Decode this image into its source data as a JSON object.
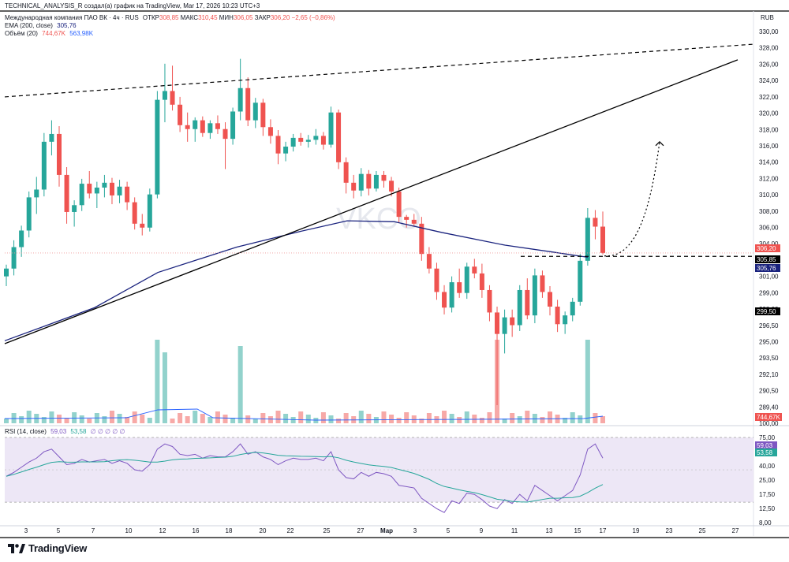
{
  "header": {
    "top_line": "TECHNICAL_ANALYSIS_R создал(а) график на TradingView, Mar 17, 2026 10:23 UTC+3",
    "symbol": "Международная компания ПАО ВК · 4ч · RUS",
    "o_label": "ОТКР",
    "o": "308,85",
    "h_label": "МАКС",
    "h": "310,45",
    "l_label": "МИН",
    "l": "306,05",
    "c_label": "ЗАКР",
    "c": "306,20",
    "change": "−2,65 (−0,86%)",
    "ema_label": "EMA (200, close)",
    "ema_value": "305,76",
    "vol_label": "Объём (20)",
    "vol_value": "744,67K",
    "vol_ma": "563,98K",
    "currency": "RUB"
  },
  "watermark": "VKCO",
  "rsi_legend": {
    "label": "RSI (14, close)",
    "value": "59,03",
    "ma": "53,58",
    "extra": "∅ ∅ ∅ ∅ ∅"
  },
  "brand": "TradingView",
  "colors": {
    "up": "#26a69a",
    "down": "#ef5350",
    "ema": "#1a237e",
    "rsi": "#7e57c2",
    "rsi_ma": "#26a69a",
    "rsi_band": "#ede7f6"
  },
  "chart_data": {
    "type": "candlestick",
    "price_axis": [
      "330,00",
      "328,00",
      "326,00",
      "324,00",
      "322,00",
      "320,00",
      "318,00",
      "316,00",
      "314,00",
      "312,00",
      "310,00",
      "308,00",
      "306,00",
      "304,00",
      "302,00",
      "301,00",
      "299,00",
      "298,00",
      "296,50",
      "295,00",
      "293,50",
      "292,10",
      "290,50",
      "289,40",
      "100,00"
    ],
    "price_range": [
      288.5,
      331
    ],
    "rsi_axis": [
      "75,00",
      "60,00",
      "40,00",
      "25,00",
      "17,50",
      "12,50",
      "8,00"
    ],
    "x_ticks": [
      "3",
      "5",
      "7",
      "10",
      "12",
      "16",
      "18",
      "20",
      "22",
      "25",
      "27",
      "Мар",
      "3",
      "5",
      "9",
      "11",
      "13",
      "15",
      "17",
      "19",
      "23",
      "25",
      "27"
    ],
    "price_tags": [
      {
        "text": "306,20",
        "kind": "last"
      },
      {
        "text": "305,85",
        "kind": "level"
      },
      {
        "text": "305,76",
        "kind": "ema"
      },
      {
        "text": "299,50",
        "kind": "level"
      }
    ],
    "vol_tag": "744,67K",
    "rsi_tags": [
      "59,03",
      "53,58"
    ],
    "candles": [
      [
        303.8,
        305.0,
        302.8,
        304.6
      ],
      [
        304.6,
        307.5,
        303.9,
        306.8
      ],
      [
        306.8,
        309.0,
        305.8,
        308.5
      ],
      [
        308.5,
        312.5,
        307.8,
        311.9
      ],
      [
        311.9,
        314.0,
        310.2,
        312.7
      ],
      [
        312.7,
        318.5,
        312.0,
        317.6
      ],
      [
        317.6,
        319.8,
        316.2,
        318.4
      ],
      [
        318.4,
        319.2,
        313.0,
        314.2
      ],
      [
        314.2,
        315.0,
        309.2,
        310.4
      ],
      [
        310.4,
        311.6,
        308.9,
        311.1
      ],
      [
        311.1,
        313.8,
        310.5,
        313.3
      ],
      [
        313.3,
        314.6,
        311.8,
        312.3
      ],
      [
        312.3,
        313.5,
        310.8,
        312.9
      ],
      [
        312.9,
        314.2,
        311.9,
        313.4
      ],
      [
        313.4,
        313.9,
        311.2,
        312.1
      ],
      [
        312.1,
        313.7,
        311.3,
        313.0
      ],
      [
        313.0,
        313.5,
        310.6,
        311.4
      ],
      [
        311.4,
        311.9,
        308.6,
        309.2
      ],
      [
        309.2,
        310.2,
        308.0,
        308.8
      ],
      [
        308.8,
        312.8,
        308.4,
        312.2
      ],
      [
        312.2,
        322.8,
        311.8,
        321.9
      ],
      [
        321.9,
        325.6,
        319.6,
        322.8
      ],
      [
        322.8,
        325.4,
        320.8,
        321.4
      ],
      [
        321.4,
        322.2,
        318.6,
        319.3
      ],
      [
        319.3,
        320.6,
        317.6,
        318.9
      ],
      [
        318.9,
        320.1,
        317.6,
        319.8
      ],
      [
        319.8,
        320.2,
        318.1,
        318.5
      ],
      [
        318.5,
        319.8,
        317.9,
        319.5
      ],
      [
        319.5,
        320.3,
        318.4,
        318.9
      ],
      [
        318.9,
        319.6,
        314.8,
        317.9
      ],
      [
        317.9,
        321.1,
        317.3,
        320.7
      ],
      [
        320.7,
        326.1,
        319.8,
        323.1
      ],
      [
        323.1,
        324.2,
        319.2,
        319.8
      ],
      [
        319.8,
        322.1,
        319.0,
        321.6
      ],
      [
        321.6,
        322.0,
        318.2,
        319.1
      ],
      [
        319.1,
        319.9,
        317.4,
        318.2
      ],
      [
        318.2,
        318.8,
        315.3,
        316.4
      ],
      [
        316.4,
        317.6,
        315.6,
        317.1
      ],
      [
        317.1,
        318.4,
        316.6,
        318.0
      ],
      [
        318.0,
        318.5,
        317.2,
        317.6
      ],
      [
        317.6,
        318.3,
        317.0,
        317.8
      ],
      [
        317.8,
        318.9,
        317.3,
        318.2
      ],
      [
        318.2,
        318.6,
        316.8,
        317.3
      ],
      [
        317.3,
        321.2,
        317.0,
        320.6
      ],
      [
        320.6,
        320.9,
        314.8,
        315.5
      ],
      [
        315.5,
        316.0,
        312.3,
        313.4
      ],
      [
        313.4,
        314.2,
        311.8,
        312.6
      ],
      [
        312.6,
        314.9,
        312.0,
        314.3
      ],
      [
        314.3,
        314.7,
        312.1,
        312.8
      ],
      [
        312.8,
        314.6,
        312.5,
        314.2
      ],
      [
        314.2,
        314.6,
        312.9,
        313.6
      ],
      [
        313.6,
        314.0,
        312.0,
        312.5
      ],
      [
        312.5,
        312.9,
        309.3,
        309.9
      ],
      [
        309.9,
        310.1,
        308.8,
        309.6
      ],
      [
        309.6,
        310.2,
        308.9,
        309.2
      ],
      [
        309.2,
        309.9,
        305.4,
        306.1
      ],
      [
        306.1,
        306.8,
        304.1,
        304.6
      ],
      [
        304.6,
        305.2,
        301.4,
        302.2
      ],
      [
        302.2,
        302.9,
        299.9,
        300.6
      ],
      [
        300.6,
        303.8,
        300.1,
        303.2
      ],
      [
        303.2,
        304.6,
        301.6,
        302.1
      ],
      [
        302.1,
        305.2,
        301.5,
        304.8
      ],
      [
        304.8,
        305.6,
        303.6,
        304.1
      ],
      [
        304.1,
        305.1,
        301.6,
        302.4
      ],
      [
        302.4,
        302.9,
        299.2,
        300.1
      ],
      [
        300.1,
        300.7,
        290.6,
        297.9
      ],
      [
        297.9,
        300.4,
        295.9,
        299.6
      ],
      [
        299.6,
        300.4,
        297.6,
        298.8
      ],
      [
        298.8,
        302.9,
        298.2,
        302.4
      ],
      [
        302.4,
        303.6,
        299.4,
        299.8
      ],
      [
        299.8,
        304.6,
        299.0,
        303.9
      ],
      [
        303.9,
        304.4,
        301.6,
        302.2
      ],
      [
        302.2,
        302.8,
        299.8,
        300.7
      ],
      [
        300.7,
        301.4,
        298.1,
        298.9
      ],
      [
        298.9,
        300.2,
        297.9,
        299.8
      ],
      [
        299.8,
        301.6,
        299.2,
        301.2
      ],
      [
        301.2,
        306.1,
        300.8,
        305.4
      ],
      [
        305.4,
        310.8,
        304.9,
        309.8
      ],
      [
        309.8,
        310.6,
        307.6,
        308.9
      ],
      [
        308.9,
        310.45,
        306.05,
        306.2
      ]
    ],
    "rsi": [
      45,
      48,
      52,
      56,
      59,
      64,
      66,
      60,
      54,
      55,
      58,
      56,
      57,
      58,
      55,
      57,
      55,
      50,
      49,
      54,
      66,
      70,
      68,
      62,
      61,
      62,
      59,
      61,
      60,
      60,
      64,
      70,
      62,
      64,
      60,
      58,
      54,
      57,
      59,
      58,
      58,
      59,
      57,
      64,
      50,
      44,
      43,
      48,
      45,
      48,
      47,
      45,
      38,
      37,
      36,
      28,
      24,
      20,
      17,
      26,
      24,
      32,
      31,
      27,
      22,
      20,
      27,
      24,
      31,
      26,
      38,
      34,
      30,
      26,
      30,
      34,
      46,
      66,
      70,
      59
    ]
  }
}
